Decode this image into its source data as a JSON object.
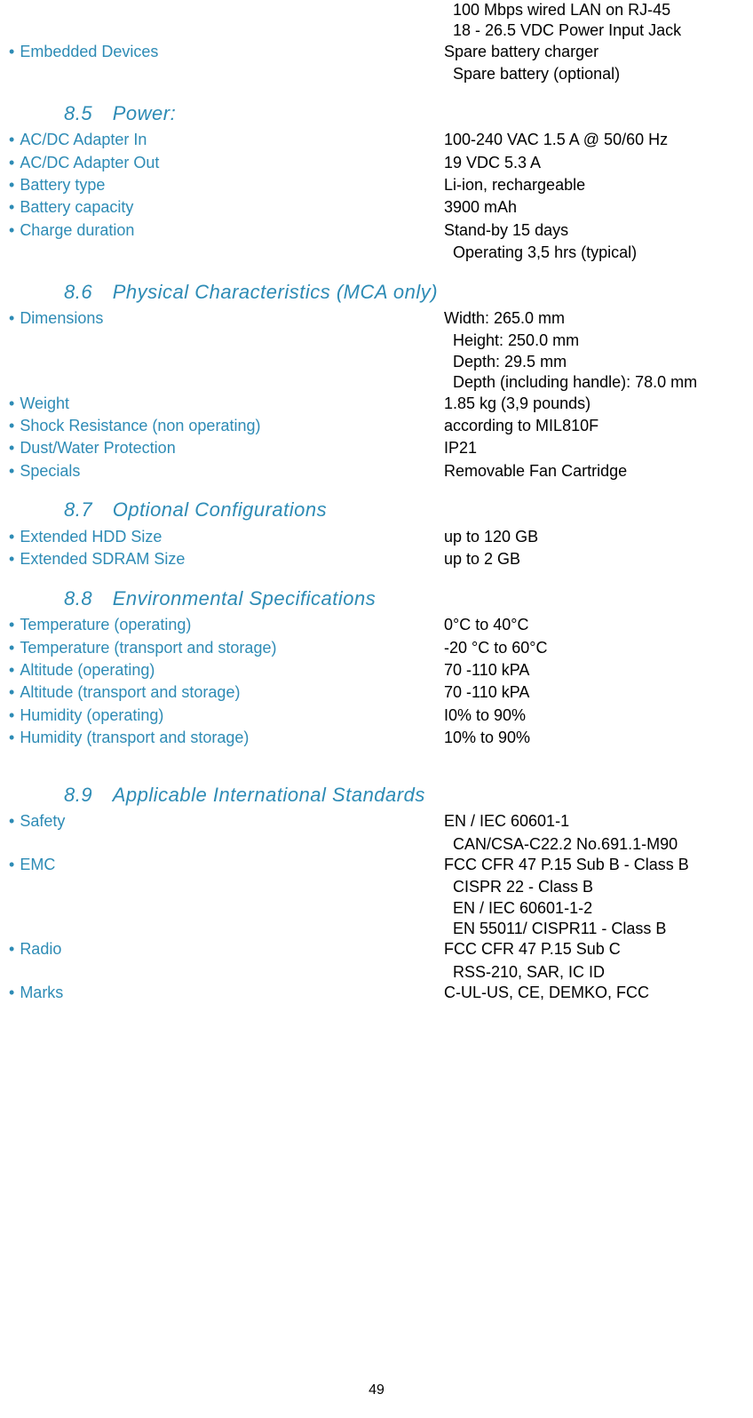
{
  "colors": {
    "heading": "#2d8bb5",
    "label": "#2d8bb5",
    "value": "#000000",
    "background": "#ffffff"
  },
  "top_values": [
    "100 Mbps wired LAN on RJ-45",
    "18 - 26.5 VDC Power Input Jack"
  ],
  "embedded_devices": {
    "label": "Embedded Devices",
    "values": [
      "Spare battery charger",
      "Spare battery (optional)"
    ]
  },
  "sections": {
    "power": {
      "number": "8.5",
      "title": "Power:",
      "items": [
        {
          "label": "AC/DC Adapter In",
          "values": [
            "100-240 VAC 1.5 A @ 50/60 Hz"
          ]
        },
        {
          "label": "AC/DC Adapter Out",
          "values": [
            "19 VDC 5.3 A"
          ]
        },
        {
          "label": "Battery type",
          "values": [
            "Li-ion, rechargeable"
          ]
        },
        {
          "label": "Battery capacity",
          "values": [
            "3900 mAh"
          ]
        },
        {
          "label": "Charge duration",
          "values": [
            "Stand-by 15  days",
            "Operating 3,5 hrs (typical)"
          ]
        }
      ]
    },
    "physical": {
      "number": "8.6",
      "title": "Physical Characteristics (MCA only)",
      "items": [
        {
          "label": "Dimensions",
          "values": [
            "Width: 265.0 mm",
            "Height: 250.0 mm",
            "Depth: 29.5 mm",
            "Depth (including handle): 78.0 mm"
          ]
        },
        {
          "label": "Weight",
          "values": [
            "1.85 kg (3,9 pounds)"
          ]
        },
        {
          "label": "Shock Resistance (non operating)",
          "values": [
            "according to MIL810F"
          ]
        },
        {
          "label": "Dust/Water Protection",
          "values": [
            "IP21"
          ]
        },
        {
          "label": "Specials",
          "values": [
            "Removable Fan Cartridge"
          ]
        }
      ]
    },
    "optional": {
      "number": "8.7",
      "title": "Optional Configurations",
      "items": [
        {
          "label": "Extended HDD Size",
          "values": [
            "up to 120 GB"
          ]
        },
        {
          "label": "Extended SDRAM Size",
          "values": [
            "up to 2 GB"
          ]
        }
      ]
    },
    "environmental": {
      "number": "8.8",
      "title": "Environmental Specifications",
      "items": [
        {
          "label": "Temperature (operating)",
          "values": [
            "0°C to 40°C"
          ]
        },
        {
          "label": "Temperature (transport and storage)",
          "values": [
            "-20 °C to 60°C"
          ]
        },
        {
          "label": "Altitude (operating)",
          "values": [
            "70 -110 kPA"
          ]
        },
        {
          "label": "Altitude (transport and storage)",
          "values": [
            "70 -110 kPA"
          ]
        },
        {
          "label": "Humidity (operating)",
          "values": [
            "I0% to 90%"
          ]
        },
        {
          "label": "Humidity (transport and storage)",
          "values": [
            "10% to 90%"
          ]
        }
      ]
    },
    "standards": {
      "number": "8.9",
      "title": "Applicable International Standards",
      "items": [
        {
          "label": "Safety",
          "values": [
            "EN / IEC 60601-1",
            "CAN/CSA-C22.2 No.691.1-M90"
          ]
        },
        {
          "label": "EMC",
          "values": [
            "FCC CFR 47 P.15 Sub B - Class B",
            "CISPR 22 - Class B",
            "EN / IEC 60601-1-2",
            "EN 55011/ CISPR11 - Class B"
          ]
        },
        {
          "label": "Radio",
          "values": [
            "FCC CFR 47 P.15 Sub C",
            "RSS-210, SAR, IC ID"
          ]
        },
        {
          "label": "Marks",
          "values": [
            "C-UL-US, CE, DEMKO, FCC"
          ]
        }
      ]
    }
  },
  "page_number": "49"
}
